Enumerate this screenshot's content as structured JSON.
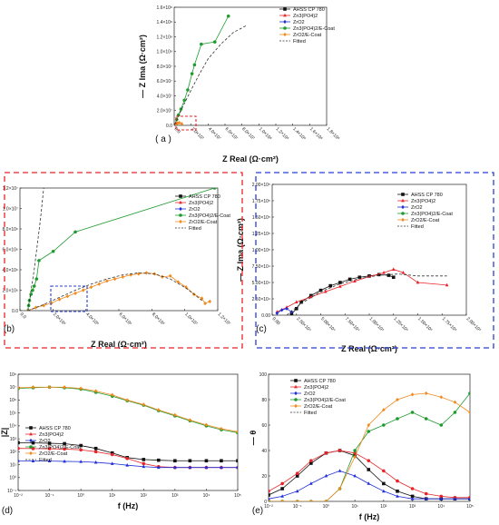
{
  "colors": {
    "AHSS CP 780": "#111111",
    "Zn3(PO4)2": "#e8242a",
    "ZrO2": "#1f2fd6",
    "Zn3(PO4)2/E-Coat": "#1e9b2e",
    "ZrO2/E-Coat": "#f28a1e",
    "Fitted": "#333333",
    "red_box": "#e8242a",
    "blue_box": "#2b3fd6"
  },
  "legend_entries": [
    "AHSS CP 780",
    "Zn3(PO4)2",
    "ZrO2",
    "Zn3(PO4)2/E-Coat",
    "ZrO2/E-Coat",
    "Fitted"
  ],
  "chart_data": [
    {
      "id": "a",
      "panel_label": "( a )",
      "type": "scatter",
      "xlabel": "Z Real (Ω·cm²)",
      "ylabel": "— Z Ima (Ω·cm²)",
      "xlim": [
        0,
        180000000.0
      ],
      "ylim": [
        0,
        160000000.0
      ],
      "xticks": [
        "0.0",
        "2.0×10⁷",
        "4.0×10⁷",
        "6.0×10⁷",
        "8.0×10⁷",
        "1.0×10⁸",
        "1.2×10⁸",
        "1.4×10⁸",
        "1.6×10⁸",
        "1.8×10⁸"
      ],
      "yticks": [
        "0.0",
        "2.0×10⁷",
        "4.0×10⁷",
        "6.0×10⁷",
        "8.0×10⁷",
        "1.0×10⁸",
        "1.2×10⁸",
        "1.4×10⁸",
        "1.6×10⁸"
      ],
      "series": [
        {
          "name": "Zn3(PO4)2/E-Coat",
          "marker": "circle",
          "x": [
            0.0,
            3000000.0,
            5000000.0,
            8000000.0,
            12000000.0,
            16000000.0,
            21000000.0,
            24000000.0,
            32000000.0,
            48000000.0,
            64000000.0
          ],
          "y": [
            0.0,
            8000000.0,
            14000000.0,
            22000000.0,
            34000000.0,
            48000000.0,
            70000000.0,
            82000000.0,
            110000000.0,
            113000000.0,
            148000000.0
          ]
        },
        {
          "name": "ZrO2/E-Coat",
          "marker": "diamond",
          "x": [
            0.0,
            2000000.0,
            4000000.0,
            6000000.0,
            9000000.0
          ],
          "y": [
            0.0,
            1500000.0,
            3000000.0,
            3500000.0,
            2000000.0
          ]
        },
        {
          "name": "Fitted",
          "style": "dashed",
          "x": [
            0.0,
            5000000.0,
            10000000.0,
            20000000.0,
            30000000.0,
            40000000.0,
            55000000.0,
            70000000.0,
            85000000.0
          ],
          "y": [
            0.0,
            12000000.0,
            25000000.0,
            48000000.0,
            70000000.0,
            90000000.0,
            110000000.0,
            126000000.0,
            135000000.0
          ]
        }
      ]
    },
    {
      "id": "b",
      "panel_label": "(b)",
      "type": "scatter",
      "xlabel": "Z Real (Ω·cm²)",
      "ylabel": "— Z Ima (Ω·cm²)",
      "xlim": [
        -500000.0,
        12000000.0
      ],
      "ylim": [
        0,
        12000000.0
      ],
      "xticks": [
        "0.0",
        "2.0×10⁶",
        "4.0×10⁶",
        "6.0×10⁶",
        "8.0×10⁶",
        "1.0×10⁷",
        "1.2×10⁷"
      ],
      "yticks": [
        "0.0",
        "2.0×10⁶",
        "4.0×10⁶",
        "6.0×10⁶",
        "8.0×10⁶",
        "1.0×10⁷",
        "1.2×10⁷"
      ],
      "series": [
        {
          "name": "Zn3(PO4)2/E-Coat",
          "marker": "circle",
          "x": [
            0.0,
            50000.0,
            100000.0,
            200000.0,
            300000.0,
            400000.0,
            550000.0,
            700000.0,
            1600000.0,
            3000000.0,
            11800000.0
          ],
          "y": [
            0.0,
            500000.0,
            1000000.0,
            1600000.0,
            2000000.0,
            2400000.0,
            3100000.0,
            4900000.0,
            5800000.0,
            7700000.0,
            12000000.0
          ]
        },
        {
          "name": "ZrO2/E-Coat",
          "marker": "diamond",
          "x": [
            0.0,
            500000.0,
            1000000.0,
            1500000.0,
            2000000.0,
            2500000.0,
            3000000.0,
            3500000.0,
            4000000.0,
            4500000.0,
            5000000.0,
            5500000.0,
            6000000.0,
            6500000.0,
            7000000.0,
            7500000.0,
            8000000.0,
            8500000.0,
            9000000.0,
            9500000.0,
            10000000.0,
            10500000.0,
            11000000.0,
            11200000.0,
            11500000.0
          ],
          "y": [
            0.0,
            300000.0,
            500000.0,
            750000.0,
            1100000.0,
            1400000.0,
            1700000.0,
            2000000.0,
            2300000.0,
            2600000.0,
            2900000.0,
            3100000.0,
            3300000.0,
            3500000.0,
            3600000.0,
            3700000.0,
            3600000.0,
            3300000.0,
            3400000.0,
            2800000.0,
            2300000.0,
            1600000.0,
            1200000.0,
            700000.0,
            900000.0
          ]
        },
        {
          "name": "Fitted",
          "style": "dashed",
          "x": [
            0.0,
            1000000.0,
            2000000.0,
            3000000.0,
            4000000.0,
            5000000.0,
            6000000.0,
            7000000.0,
            8000000.0,
            9000000.0,
            10000000.0,
            11000000.0
          ],
          "y": [
            0.0,
            600000.0,
            1300000.0,
            2000000.0,
            2600000.0,
            3100000.0,
            3500000.0,
            3700000.0,
            3600000.0,
            3100000.0,
            2200000.0,
            1000000.0
          ]
        },
        {
          "name": "Fitted",
          "style": "dashed",
          "x": [
            0.0,
            200000.0,
            400000.0,
            600000.0,
            800000.0,
            1000000.0
          ],
          "y": [
            0.0,
            2000000.0,
            4000000.0,
            6500000.0,
            9000000.0,
            12000000.0
          ]
        }
      ]
    },
    {
      "id": "c",
      "panel_label": "(c)",
      "type": "scatter",
      "xlabel": "Z Real (Ω·cm²)",
      "ylabel": "— Z Ima (Ω·cm²)",
      "xlim": [
        0,
        200000.0
      ],
      "ylim": [
        0,
        200000.0
      ],
      "xticks": [
        "0.00",
        "2.50×10⁴",
        "5.00×10⁴",
        "7.50×10⁴",
        "1.00×10⁵",
        "1.25×10⁵",
        "1.50×10⁵",
        "1.75×10⁵",
        "2.00×10⁵"
      ],
      "yticks": [
        "0.00",
        "2.50×10⁴",
        "5.00×10⁴",
        "7.50×10⁴",
        "1.00×10⁵",
        "1.25×10⁵",
        "1.50×10⁵",
        "1.75×10⁵",
        "2.00×10⁵"
      ],
      "series": [
        {
          "name": "AHSS CP 780",
          "marker": "square",
          "x": [
            20000.0,
            25000.0,
            30000.0,
            40000.0,
            50000.0,
            60000.0,
            70000.0,
            80000.0,
            90000.0,
            100000.0,
            110000.0,
            120000.0,
            125000.0
          ],
          "y": [
            2000.0,
            10000.0,
            20000.0,
            30000.0,
            38000.0,
            45000.0,
            50000.0,
            55000.0,
            58000.0,
            60000.0,
            62000.0,
            61000.0,
            58000.0
          ]
        },
        {
          "name": "Zn3(PO4)2",
          "marker": "triangle",
          "x": [
            5000.0,
            15000.0,
            25000.0,
            40000.0,
            55000.0,
            70000.0,
            85000.0,
            100000.0,
            115000.0,
            125000.0,
            135000.0,
            150000.0,
            180000.0
          ],
          "y": [
            5000.0,
            12000.0,
            20000.0,
            28000.0,
            36000.0,
            44000.0,
            52000.0,
            59000.0,
            65000.0,
            70000.0,
            65000.0,
            50000.0,
            46000.0
          ]
        },
        {
          "name": "ZrO2",
          "marker": "diamond",
          "x": [
            5000.0,
            10000.0,
            15000.0,
            20000.0
          ],
          "y": [
            3000.0,
            8000.0,
            10000.0,
            5000.0
          ]
        },
        {
          "name": "Fitted",
          "style": "dashed",
          "x": [
            15000.0,
            30000.0,
            50000.0,
            70000.0,
            90000.0,
            110000.0,
            130000.0,
            150000.0,
            180000.0
          ],
          "y": [
            0.0,
            18000.0,
            36000.0,
            48000.0,
            56000.0,
            61000.0,
            63000.0,
            60000.0,
            60000.0
          ]
        }
      ]
    },
    {
      "id": "d",
      "panel_label": "(d)",
      "type": "line",
      "xlabel": "f (Hz)",
      "ylabel": "|Z|",
      "log_x": true,
      "log_y": true,
      "xlim": [
        0.01,
        100000
      ],
      "ylim": [
        0.1,
        100000000
      ],
      "xticks": [
        "10⁻²",
        "10⁻¹",
        "10⁰",
        "10¹",
        "10²",
        "10³",
        "10⁴",
        "10⁵"
      ],
      "yticks": [
        "10⁻¹",
        "10⁰",
        "10¹",
        "10²",
        "10³",
        "10⁴",
        "10⁵",
        "10⁶",
        "10⁷",
        "10⁸"
      ],
      "series": [
        {
          "name": "AHSS CP 780",
          "marker": "square",
          "x": [
            0.01,
            0.03,
            0.1,
            0.3,
            1,
            3,
            10,
            30,
            100,
            300,
            1000,
            3000,
            10000,
            30000,
            100000
          ],
          "y": [
            500,
            480,
            450,
            420,
            300,
            180,
            80,
            35,
            25,
            22,
            20,
            20,
            20,
            20,
            20
          ]
        },
        {
          "name": "Zn3(PO4)2",
          "marker": "circle",
          "x": [
            0.01,
            0.03,
            0.1,
            0.3,
            1,
            3,
            10,
            30,
            100,
            300,
            1000,
            3000,
            10000,
            30000,
            100000
          ],
          "y": [
            180,
            175,
            170,
            160,
            140,
            100,
            60,
            30,
            12,
            7,
            6,
            6,
            6,
            6,
            6
          ]
        },
        {
          "name": "ZrO2",
          "marker": "triangle",
          "x": [
            0.01,
            0.03,
            0.1,
            0.3,
            1,
            3,
            10,
            30,
            100,
            300,
            1000,
            3000,
            10000,
            30000,
            100000
          ],
          "y": [
            20,
            19,
            19,
            18,
            17,
            15,
            12,
            9,
            7,
            6,
            6,
            6,
            6,
            6,
            6
          ]
        },
        {
          "name": "Zn3(PO4)2/E-Coat",
          "marker": "circle",
          "x": [
            0.01,
            0.03,
            0.1,
            0.3,
            1,
            3,
            10,
            30,
            100,
            300,
            1000,
            3000,
            10000,
            30000,
            100000
          ],
          "y": [
            8000000,
            9000000,
            10000000,
            9000000,
            7000000,
            4000000,
            2000000,
            900000,
            400000,
            150000,
            60000,
            25000,
            10000,
            5000,
            3000
          ]
        },
        {
          "name": "ZrO2/E-Coat",
          "marker": "diamond",
          "x": [
            0.01,
            0.03,
            0.1,
            0.3,
            1,
            3,
            10,
            30,
            100,
            300,
            1000,
            3000,
            10000,
            30000,
            100000
          ],
          "y": [
            9000000,
            10000000,
            10000000,
            10000000,
            8000000,
            5000000,
            2500000,
            1000000,
            450000,
            170000,
            70000,
            28000,
            12000,
            6000,
            3500
          ]
        }
      ]
    },
    {
      "id": "e",
      "panel_label": "(e)",
      "type": "line",
      "xlabel": "f (Hz)",
      "ylabel": "— θ",
      "log_x": true,
      "xlim": [
        0.01,
        100000
      ],
      "ylim": [
        0,
        100
      ],
      "xticks": [
        "10⁻²",
        "10⁻¹",
        "10⁰",
        "10¹",
        "10²",
        "10³",
        "10⁴",
        "10⁵"
      ],
      "yticks": [
        "0",
        "20",
        "40",
        "60",
        "80",
        "100"
      ],
      "series": [
        {
          "name": "AHSS CP 780",
          "marker": "square",
          "x": [
            0.01,
            0.03,
            0.1,
            0.3,
            1,
            3,
            10,
            30,
            100,
            300,
            1000,
            3000,
            10000,
            30000,
            100000
          ],
          "y": [
            5,
            10,
            20,
            30,
            38,
            40,
            36,
            25,
            14,
            8,
            4,
            2,
            2,
            2,
            2
          ]
        },
        {
          "name": "Zn3(PO4)2",
          "marker": "circle",
          "x": [
            0.01,
            0.03,
            0.1,
            0.3,
            1,
            3,
            10,
            30,
            100,
            300,
            1000,
            3000,
            10000,
            30000,
            100000
          ],
          "y": [
            8,
            14,
            22,
            32,
            38,
            40,
            38,
            32,
            24,
            16,
            10,
            6,
            4,
            3,
            3
          ]
        },
        {
          "name": "ZrO2",
          "marker": "triangle",
          "x": [
            0.01,
            0.03,
            0.1,
            0.3,
            1,
            3,
            10,
            30,
            100,
            300,
            1000,
            3000,
            10000,
            30000,
            100000
          ],
          "y": [
            2,
            4,
            8,
            14,
            20,
            24,
            20,
            14,
            8,
            4,
            2,
            2,
            2,
            2,
            2
          ]
        },
        {
          "name": "Zn3(PO4)2/E-Coat",
          "marker": "circle",
          "x": [
            0.01,
            0.03,
            0.1,
            0.3,
            1,
            3,
            10,
            30,
            100,
            300,
            1000,
            3000,
            10000,
            30000,
            100000
          ],
          "y": [
            0,
            0,
            0,
            0,
            0,
            10,
            40,
            55,
            60,
            65,
            70,
            65,
            60,
            70,
            85
          ]
        },
        {
          "name": "ZrO2/E-Coat",
          "marker": "diamond",
          "x": [
            0.01,
            0.03,
            0.1,
            0.3,
            1,
            3,
            10,
            30,
            100,
            300,
            1000,
            3000,
            10000,
            30000,
            100000
          ],
          "y": [
            0,
            0,
            0,
            0,
            0,
            10,
            35,
            60,
            72,
            80,
            84,
            85,
            82,
            78,
            70
          ]
        }
      ]
    }
  ]
}
